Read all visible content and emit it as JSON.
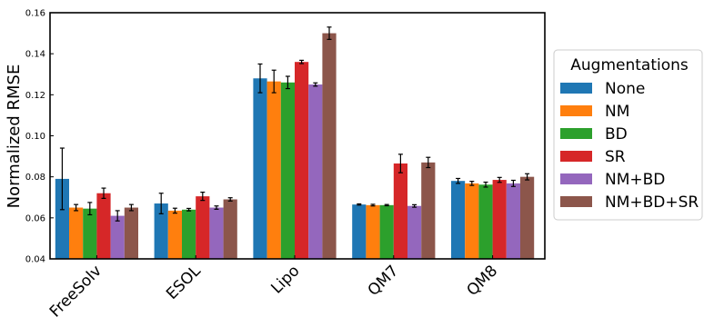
{
  "chart_data": {
    "type": "bar",
    "title": "",
    "xlabel": "",
    "ylabel": "Normalized RMSE",
    "ylim": [
      0.04,
      0.16
    ],
    "yticks": [
      "0.04",
      "0.06",
      "0.08",
      "0.10",
      "0.12",
      "0.14",
      "0.16"
    ],
    "grid": false,
    "error_bars": true,
    "categories": [
      "FreeSolv",
      "ESOL",
      "Lipo",
      "QM7",
      "QM8"
    ],
    "legend": {
      "title": "Augmentations",
      "placement": "outside-right"
    },
    "series": [
      {
        "name": "None",
        "color": "#1f77b4",
        "values": [
          0.079,
          0.067,
          0.128,
          0.0665,
          0.078
        ],
        "errors": [
          0.015,
          0.005,
          0.007,
          0.0003,
          0.0012
        ]
      },
      {
        "name": "NM",
        "color": "#ff7f0e",
        "values": [
          0.065,
          0.0635,
          0.1265,
          0.0662,
          0.0768
        ],
        "errors": [
          0.0015,
          0.0012,
          0.0055,
          0.0004,
          0.001
        ]
      },
      {
        "name": "BD",
        "color": "#2ca02c",
        "values": [
          0.0645,
          0.064,
          0.126,
          0.0662,
          0.0762
        ],
        "errors": [
          0.003,
          0.0006,
          0.003,
          0.0003,
          0.0012
        ]
      },
      {
        "name": "SR",
        "color": "#d62728",
        "values": [
          0.072,
          0.0705,
          0.136,
          0.0865,
          0.0785
        ],
        "errors": [
          0.0025,
          0.002,
          0.0008,
          0.0045,
          0.0012
        ]
      },
      {
        "name": "NM+BD",
        "color": "#9467bd",
        "values": [
          0.061,
          0.065,
          0.125,
          0.0658,
          0.0768
        ],
        "errors": [
          0.0025,
          0.0008,
          0.0008,
          0.0006,
          0.0015
        ]
      },
      {
        "name": "NM+BD+SR",
        "color": "#8c564b",
        "values": [
          0.065,
          0.069,
          0.15,
          0.087,
          0.08
        ],
        "errors": [
          0.0015,
          0.0008,
          0.003,
          0.0025,
          0.0015
        ]
      }
    ]
  }
}
